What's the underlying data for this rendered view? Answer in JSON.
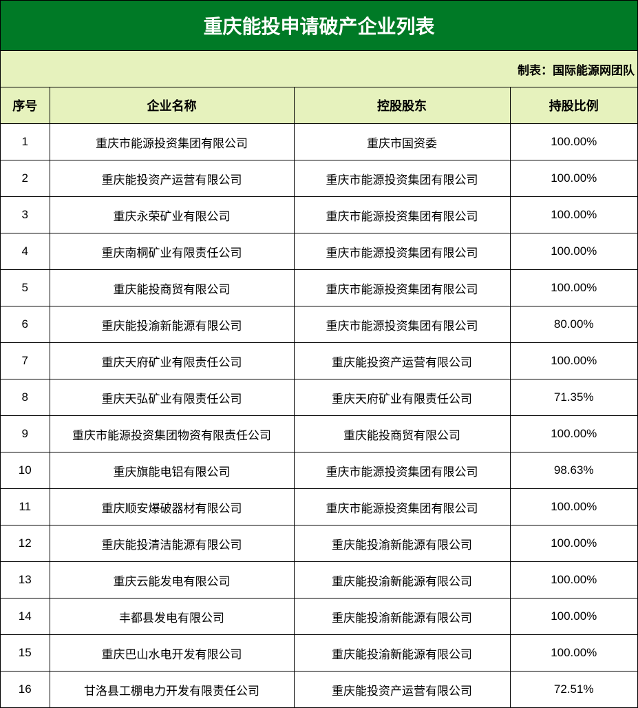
{
  "title": "重庆能投申请破产企业列表",
  "maker": "制表：国际能源网团队",
  "colors": {
    "title_bg": "#007a26",
    "header_bg": "#e6f2bd"
  },
  "columns": [
    "序号",
    "企业名称",
    "控股股东",
    "持股比例"
  ],
  "rows": [
    [
      "1",
      "重庆市能源投资集团有限公司",
      "重庆市国资委",
      "100.00%"
    ],
    [
      "2",
      "重庆能投资产运营有限公司",
      "重庆市能源投资集团有限公司",
      "100.00%"
    ],
    [
      "3",
      "重庆永荣矿业有限公司",
      "重庆市能源投资集团有限公司",
      "100.00%"
    ],
    [
      "4",
      "重庆南桐矿业有限责任公司",
      "重庆市能源投资集团有限公司",
      "100.00%"
    ],
    [
      "5",
      "重庆能投商贸有限公司",
      "重庆市能源投资集团有限公司",
      "100.00%"
    ],
    [
      "6",
      "重庆能投渝新能源有限公司",
      "重庆市能源投资集团有限公司",
      "80.00%"
    ],
    [
      "7",
      "重庆天府矿业有限责任公司",
      "重庆能投资产运营有限公司",
      "100.00%"
    ],
    [
      "8",
      "重庆天弘矿业有限责任公司",
      "重庆天府矿业有限责任公司",
      "71.35%"
    ],
    [
      "9",
      "重庆市能源投资集团物资有限责任公司",
      "重庆能投商贸有限公司",
      "100.00%"
    ],
    [
      "10",
      "重庆旗能电铝有限公司",
      "重庆市能源投资集团有限公司",
      "98.63%"
    ],
    [
      "11",
      "重庆顺安爆破器材有限公司",
      "重庆市能源投资集团有限公司",
      "100.00%"
    ],
    [
      "12",
      "重庆能投清洁能源有限公司",
      "重庆能投渝新能源有限公司",
      "100.00%"
    ],
    [
      "13",
      "重庆云能发电有限公司",
      "重庆能投渝新能源有限公司",
      "100.00%"
    ],
    [
      "14",
      "丰都县发电有限公司",
      "重庆能投渝新能源有限公司",
      "100.00%"
    ],
    [
      "15",
      "重庆巴山水电开发有限公司",
      "重庆能投渝新能源有限公司",
      "100.00%"
    ],
    [
      "16",
      "甘洛县工棚电力开发有限责任公司",
      "重庆能投资产运营有限公司",
      "72.51%"
    ]
  ]
}
